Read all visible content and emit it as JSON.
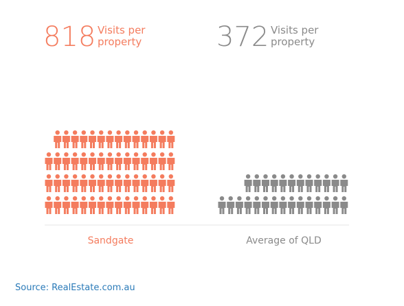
{
  "chart_data": {
    "type": "pictograph",
    "items": [
      {
        "value": 818,
        "unit_label": "Visits per property",
        "name": "Sandgate",
        "color": "#f47c5e"
      },
      {
        "value": 372,
        "unit_label": "Visits per property",
        "name": "Average of QLD",
        "color": "#8a8a8a"
      }
    ]
  },
  "source": "Source: RealEstate.com.au"
}
